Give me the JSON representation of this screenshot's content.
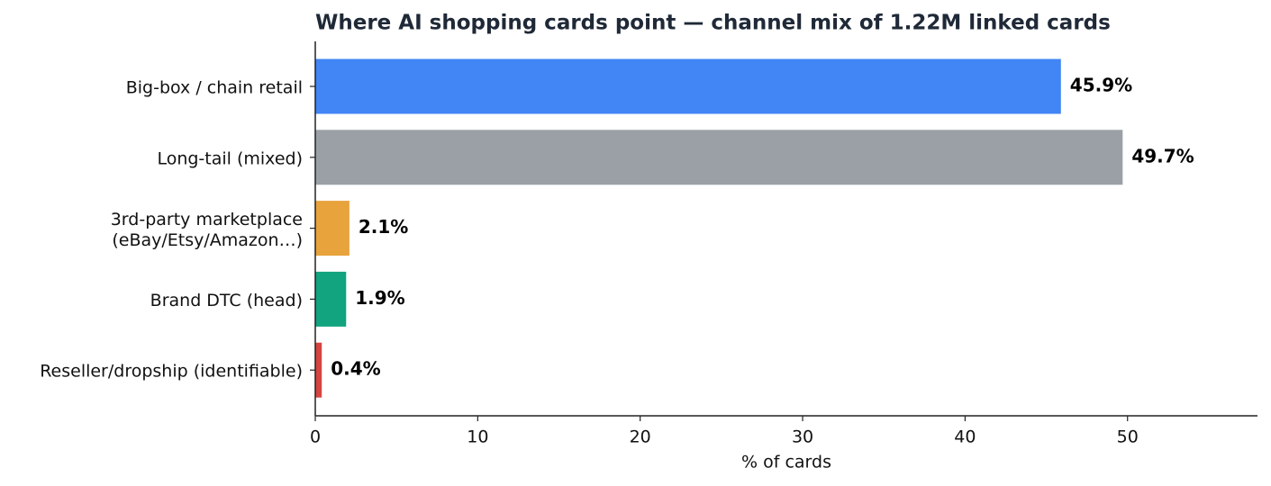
{
  "chart_data": {
    "type": "bar",
    "orientation": "horizontal",
    "title": "Where AI shopping cards point — channel mix of 1.22M linked cards",
    "xlabel": "% of cards",
    "categories": [
      "Big-box / chain retail",
      "Long-tail (mixed)",
      "3rd-party marketplace\n(eBay/Etsy/Amazon…)",
      "Brand DTC (head)",
      "Reseller/dropship (identifiable)"
    ],
    "values": [
      45.9,
      49.7,
      2.1,
      1.9,
      0.4
    ],
    "value_labels": [
      "45.9%",
      "49.7%",
      "2.1%",
      "1.9%",
      "0.4%"
    ],
    "colors": [
      "#4285f4",
      "#9aa0a6",
      "#e8a33d",
      "#12a37f",
      "#d64541"
    ],
    "xlim": [
      0,
      58
    ],
    "xticks": [
      0,
      10,
      20,
      30,
      40,
      50
    ],
    "grid": false
  }
}
